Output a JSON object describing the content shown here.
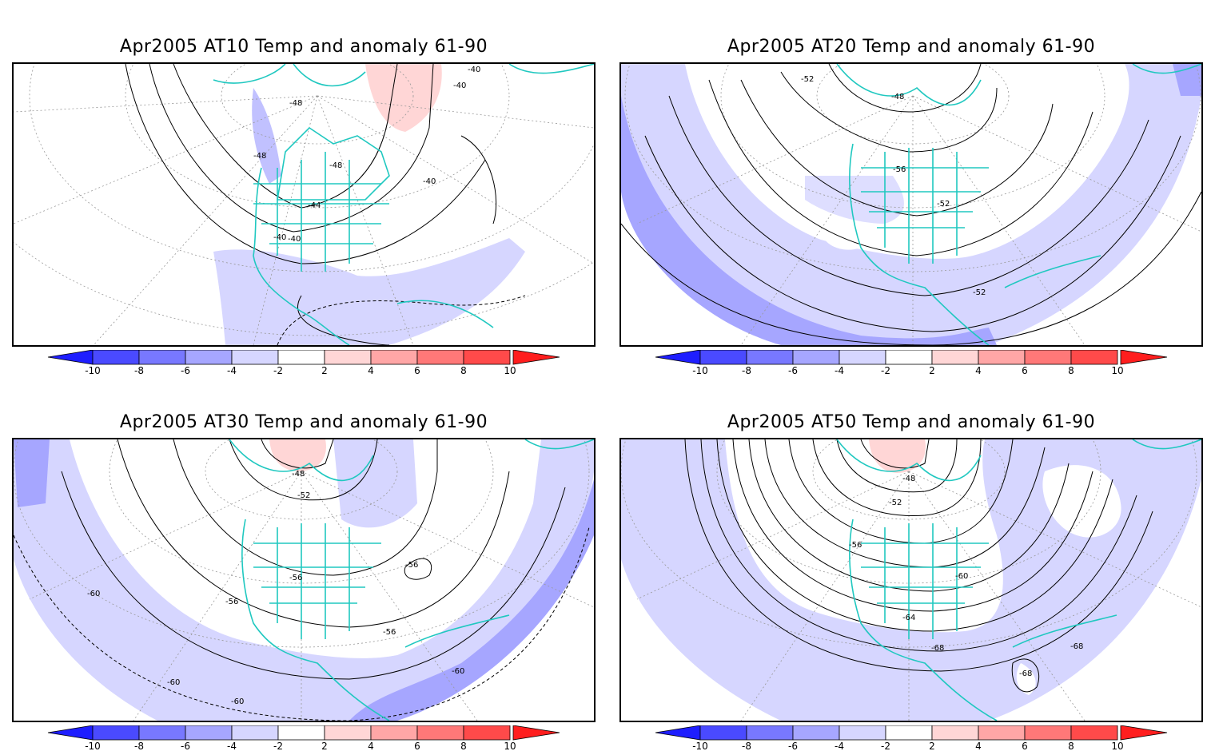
{
  "panels": [
    {
      "title": "Apr2005 AT10 Temp and anomaly 61-90",
      "contour_labels": [
        "-48",
        "-48",
        "-48",
        "-44",
        "-40",
        "-40",
        "-40",
        "-40",
        "-40"
      ]
    },
    {
      "title": "Apr2005 AT20 Temp and anomaly 61-90",
      "contour_labels": [
        "-52",
        "-48",
        "-56",
        "-52",
        "-52"
      ]
    },
    {
      "title": "Apr2005 AT30 Temp and anomaly 61-90",
      "contour_labels": [
        "-48",
        "-52",
        "-56",
        "-56",
        "-56",
        "-56",
        "-60",
        "-60",
        "-60",
        "-60"
      ]
    },
    {
      "title": "Apr2005 AT50 Temp and anomaly 61-90",
      "contour_labels": [
        "-48",
        "-52",
        "-56",
        "-60",
        "-64",
        "-68",
        "-68",
        "-68"
      ]
    }
  ],
  "colorbar": {
    "tick_labels": [
      "-10",
      "-8",
      "-6",
      "-4",
      "-2",
      "2",
      "4",
      "6",
      "8",
      "10"
    ],
    "colors": [
      "#1e1eff",
      "#4a4aff",
      "#7878ff",
      "#a6a6ff",
      "#d6d6ff",
      "#ffffff",
      "#ffd6d6",
      "#ffa6a6",
      "#ff7878",
      "#ff4a4a",
      "#ff1e1e"
    ]
  },
  "style": {
    "coast_color": "#20c8c0",
    "anomaly_colors": {
      "neg2": "#d6d6ff",
      "neg4": "#a6a6ff",
      "pos2": "#ffd6d6"
    }
  }
}
